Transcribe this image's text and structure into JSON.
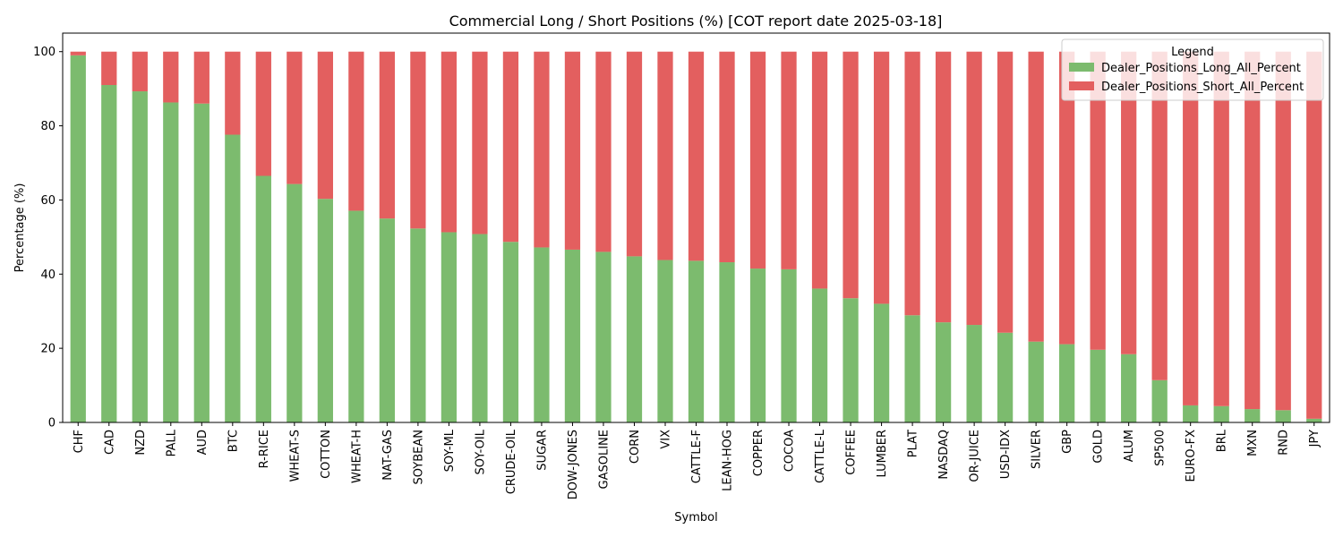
{
  "chart_data": {
    "type": "bar",
    "stacked": true,
    "title": "Commercial Long / Short Positions (%) [COT report date 2025-03-18]",
    "xlabel": "Symbol",
    "ylabel": "Percentage (%)",
    "ylim": [
      0,
      105
    ],
    "yticks": [
      0,
      20,
      40,
      60,
      80,
      100
    ],
    "grid": false,
    "legend": {
      "title": "Legend",
      "placement": "top-right"
    },
    "categories": [
      "CHF",
      "CAD",
      "NZD",
      "PALL",
      "AUD",
      "BTC",
      "R-RICE",
      "WHEAT-S",
      "COTTON",
      "WHEAT-H",
      "NAT-GAS",
      "SOYBEAN",
      "SOY-ML",
      "SOY-OIL",
      "CRUDE-OIL",
      "SUGAR",
      "DOW-JONES",
      "GASOLINE",
      "CORN",
      "VIX",
      "CATTLE-F",
      "LEAN-HOG",
      "COPPER",
      "COCOA",
      "CATTLE-L",
      "COFFEE",
      "LUMBER",
      "PLAT",
      "NASDAQ",
      "OR-JUICE",
      "USD-IDX",
      "SILVER",
      "GBP",
      "GOLD",
      "ALUM",
      "SP500",
      "EURO-FX",
      "BRL",
      "MXN",
      "RND",
      "JPY"
    ],
    "series": [
      {
        "name": "Dealer_Positions_Long_All_Percent",
        "color": "#7cbb6e",
        "values": [
          99.0,
          91.0,
          89.3,
          86.3,
          86.0,
          77.6,
          66.5,
          64.3,
          60.3,
          57.1,
          55.0,
          52.3,
          51.3,
          50.8,
          48.7,
          47.2,
          46.6,
          46.0,
          44.8,
          43.8,
          43.6,
          43.2,
          41.5,
          41.3,
          36.1,
          33.5,
          32.0,
          28.9,
          27.0,
          26.3,
          24.2,
          21.8,
          21.1,
          19.6,
          18.4,
          11.4,
          4.6,
          4.4,
          3.6,
          3.3,
          1.0
        ]
      },
      {
        "name": "Dealer_Positions_Short_All_Percent",
        "color": "#e35f5f",
        "values": [
          1.0,
          9.0,
          10.7,
          13.7,
          14.0,
          22.4,
          33.5,
          35.7,
          39.7,
          42.9,
          45.0,
          47.7,
          48.7,
          49.2,
          51.3,
          52.8,
          53.4,
          54.0,
          55.2,
          56.2,
          56.4,
          56.8,
          58.5,
          58.7,
          63.9,
          66.5,
          68.0,
          71.1,
          73.0,
          73.7,
          75.8,
          78.2,
          78.9,
          80.4,
          81.6,
          88.6,
          95.4,
          95.6,
          96.4,
          96.7,
          99.0
        ]
      }
    ]
  }
}
